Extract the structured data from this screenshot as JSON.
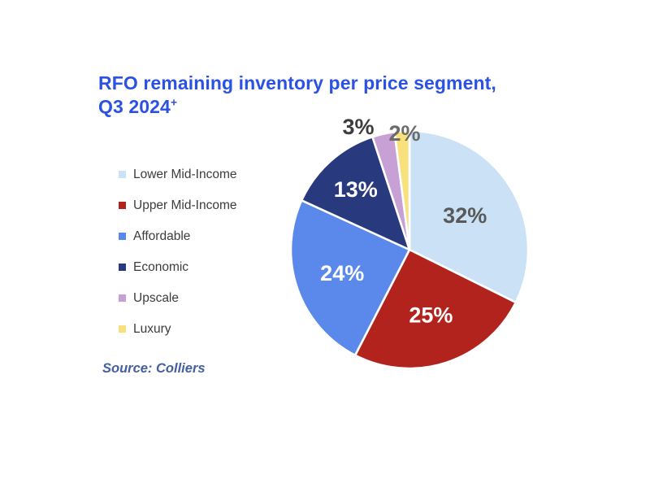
{
  "title": {
    "line1": "RFO remaining inventory per price segment,",
    "line2": "Q3 2024",
    "superscript": "+"
  },
  "source": "Source: Colliers",
  "colors": {
    "title": "#2B52E2",
    "legend_text": "#3C3C3C",
    "source_text": "#44609E",
    "background": "#FFFFFF",
    "slice_border": "#FFFFFF"
  },
  "chart_data": {
    "type": "pie",
    "title": "RFO remaining inventory per price segment, Q3 2024+",
    "legend_position": "left",
    "start_angle_deg": 0,
    "direction": "clockwise",
    "segments": [
      {
        "label": "Lower Mid-Income",
        "value": 32,
        "display": "32%",
        "color": "#CBE2F6",
        "label_color": "#595959",
        "label_placement": "inside"
      },
      {
        "label": "Upper Mid-Income",
        "value": 25,
        "display": "25%",
        "color": "#B3231E",
        "label_color": "#FFFFFF",
        "label_placement": "inside"
      },
      {
        "label": "Affordable",
        "value": 24,
        "display": "24%",
        "color": "#5A88EB",
        "label_color": "#FFFFFF",
        "label_placement": "inside"
      },
      {
        "label": "Economic",
        "value": 13,
        "display": "13%",
        "color": "#28397E",
        "label_color": "#FFFFFF",
        "label_placement": "inside"
      },
      {
        "label": "Upscale",
        "value": 3,
        "display": "3%",
        "color": "#C7A0D5",
        "label_color": "#3D3D3D",
        "label_placement": "outside"
      },
      {
        "label": "Luxury",
        "value": 2,
        "display": "2%",
        "color": "#F8E17C",
        "label_color": "#6B6B6B",
        "label_placement": "outside"
      }
    ]
  }
}
